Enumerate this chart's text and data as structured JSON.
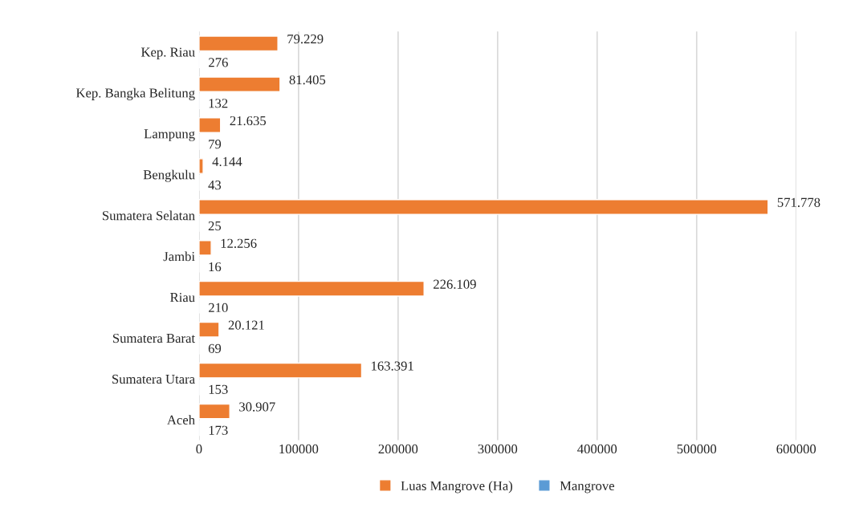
{
  "chart_data": {
    "type": "bar",
    "orientation": "horizontal",
    "categories": [
      "Kep. Riau",
      "Kep. Bangka Belitung",
      "Lampung",
      "Bengkulu",
      "Sumatera Selatan",
      "Jambi",
      "Riau",
      "Sumatera Barat",
      "Sumatera Utara",
      "Aceh"
    ],
    "series": [
      {
        "name": "Luas Mangrove (Ha)",
        "color": "#ed7d31",
        "values": [
          79229,
          81405,
          21635,
          4144,
          571778,
          12256,
          226109,
          20121,
          163391,
          30907
        ],
        "value_labels": [
          "79.229",
          "81.405",
          "21.635",
          "4.144",
          "571.778",
          "12.256",
          "226.109",
          "20.121",
          "163.391",
          "30.907"
        ]
      },
      {
        "name": "Mangrove",
        "color": "#5b9bd5",
        "values": [
          276,
          132,
          79,
          43,
          25,
          16,
          210,
          69,
          153,
          173
        ],
        "value_labels": [
          "276",
          "132",
          "79",
          "43",
          "25",
          "16",
          "210",
          "69",
          "153",
          "173"
        ]
      }
    ],
    "xlim": [
      0,
      600000
    ],
    "xticks": [
      0,
      100000,
      200000,
      300000,
      400000,
      500000,
      600000
    ],
    "grid": "x",
    "legend": "bottom"
  }
}
